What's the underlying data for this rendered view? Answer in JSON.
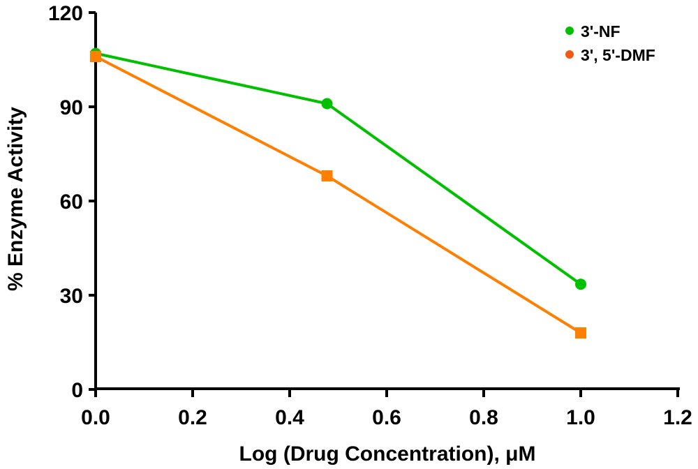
{
  "chart_data": {
    "type": "line",
    "title": "",
    "xlabel": "Log (Drug Concentration), μM",
    "ylabel": "% Enzyme Activity",
    "xlim": [
      0,
      1.2
    ],
    "ylim": [
      0,
      120
    ],
    "xticks": [
      "0.0",
      "0.2",
      "0.4",
      "0.6",
      "0.8",
      "1.0",
      "1.2"
    ],
    "xtick_values": [
      0,
      0.2,
      0.4,
      0.6,
      0.8,
      1.0,
      1.2
    ],
    "yticks": [
      "0",
      "30",
      "60",
      "90",
      "120"
    ],
    "ytick_values": [
      0,
      30,
      60,
      90,
      120
    ],
    "grid": false,
    "legend_position": "top-right",
    "series": [
      {
        "name": "3'-NF",
        "color": "#00c000",
        "marker": "circle",
        "x": [
          0,
          0.477,
          1.0
        ],
        "y": [
          107,
          91,
          33.5
        ]
      },
      {
        "name": "3', 5'-DMF",
        "color": "#ff8000",
        "legend_color": "#f05a14",
        "marker": "square",
        "x": [
          0,
          0.477,
          1.0
        ],
        "y": [
          106,
          68,
          18
        ]
      }
    ]
  }
}
